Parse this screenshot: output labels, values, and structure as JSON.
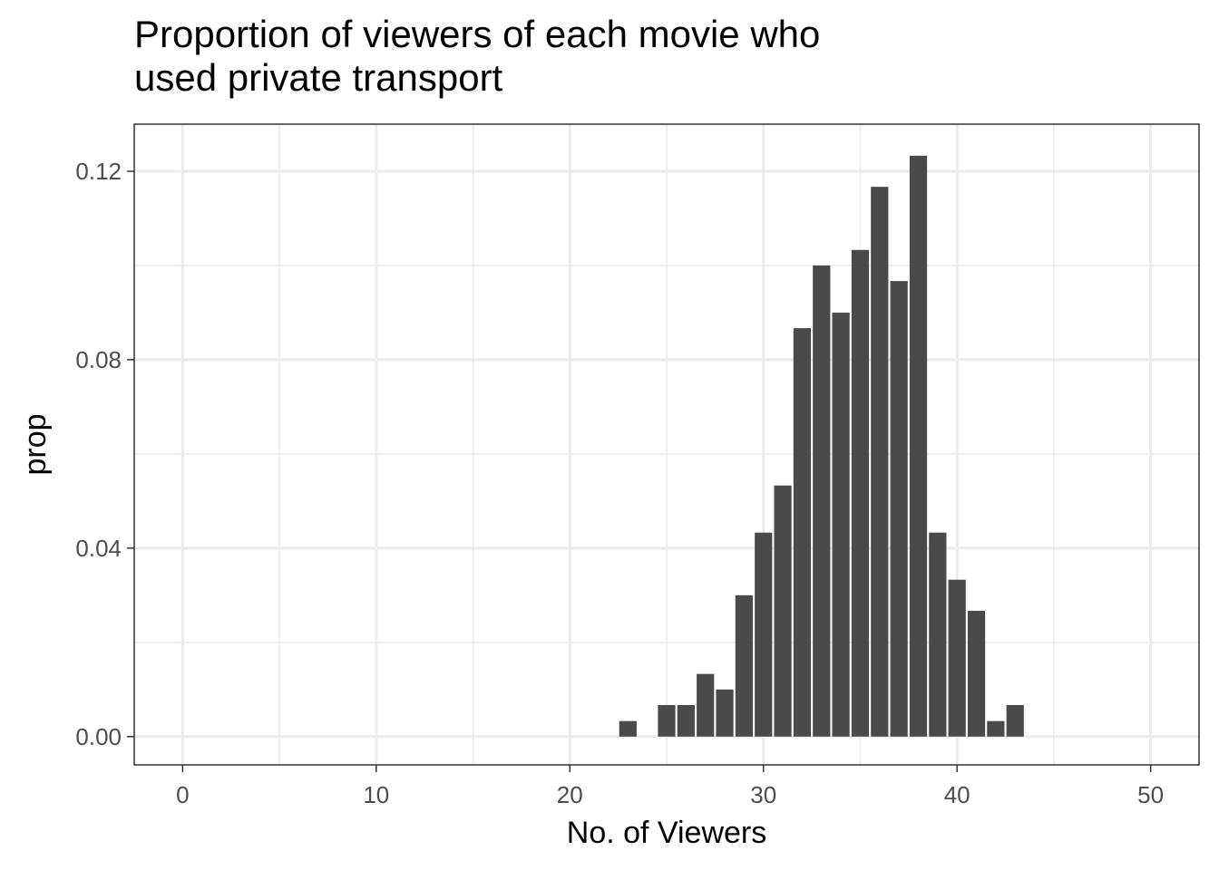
{
  "chart_data": {
    "type": "bar",
    "title_lines": [
      "Proportion of viewers of each movie who",
      "used private transport"
    ],
    "xlabel": "No. of Viewers",
    "ylabel": "prop",
    "xlim": [
      -2.5,
      52.5
    ],
    "ylim": [
      -0.006,
      0.13
    ],
    "x_ticks": [
      0,
      10,
      20,
      30,
      40,
      50
    ],
    "x_tick_labels": [
      "0",
      "10",
      "20",
      "30",
      "40",
      "50"
    ],
    "y_ticks": [
      0,
      0.04,
      0.08,
      0.12
    ],
    "y_tick_labels": [
      "0.00",
      "0.04",
      "0.08",
      "0.12"
    ],
    "grid": true,
    "bar_color": "#4a4a4a",
    "x": [
      23,
      25,
      26,
      27,
      28,
      29,
      30,
      31,
      32,
      33,
      34,
      35,
      36,
      37,
      38,
      39,
      40,
      41,
      42,
      43
    ],
    "values": [
      0.0033,
      0.0067,
      0.0067,
      0.0133,
      0.01,
      0.03,
      0.0433,
      0.0533,
      0.0867,
      0.1,
      0.09,
      0.1033,
      0.1167,
      0.0967,
      0.1233,
      0.0433,
      0.0333,
      0.0267,
      0.0033,
      0.0067
    ]
  }
}
